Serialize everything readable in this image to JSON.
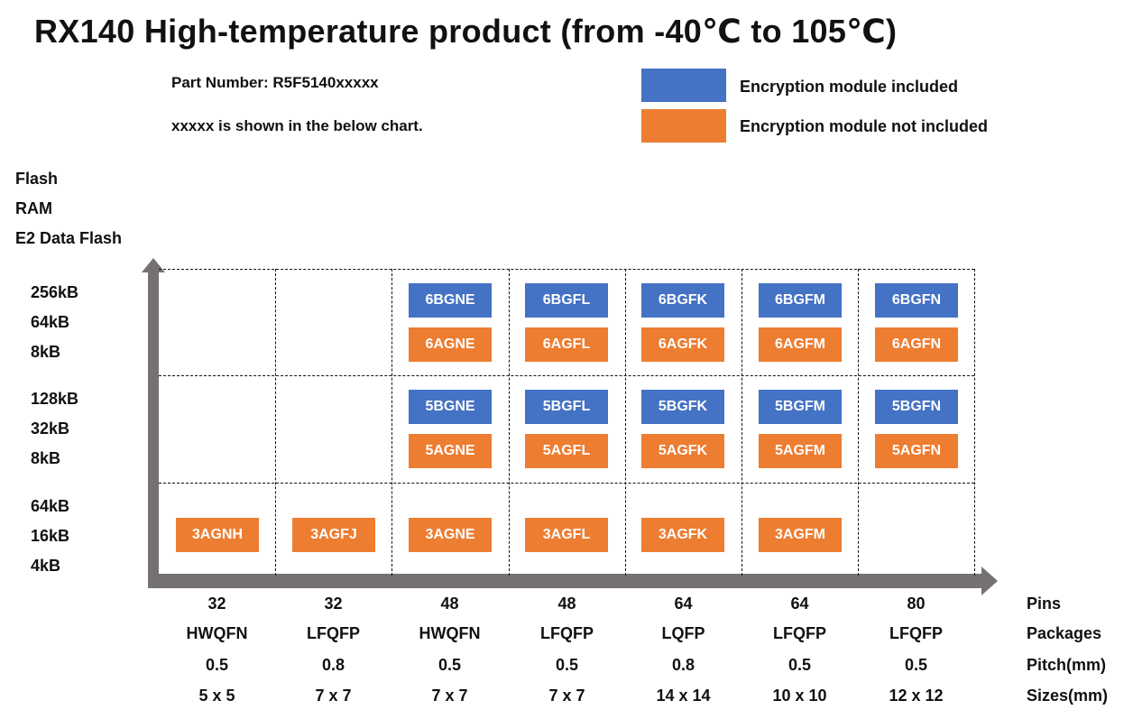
{
  "title": "RX140  High-temperature product (from -40℃ to 105℃)",
  "part_number": "Part Number: R5F5140xxxxx",
  "note": "xxxxx is shown in the below chart.",
  "colors": {
    "encrypted": "#4472C4",
    "not_encrypted": "#ED7D31",
    "axis": "#767171"
  },
  "legend": [
    {
      "label": "Encryption module included",
      "color": "#4472C4"
    },
    {
      "label": "Encryption module not included",
      "color": "#ED7D31"
    }
  ],
  "y_axis_header": [
    "Flash",
    "RAM",
    "E2 Data Flash"
  ],
  "rows": [
    {
      "memory": [
        "256kB",
        "64kB",
        "8kB"
      ],
      "cells": [
        [],
        [],
        [
          "6BGNE",
          "6AGNE"
        ],
        [
          "6BGFL",
          "6AGFL"
        ],
        [
          "6BGFK",
          "6AGFK"
        ],
        [
          "6BGFM",
          "6AGFM"
        ],
        [
          "6BGFN",
          "6AGFN"
        ]
      ]
    },
    {
      "memory": [
        "128kB",
        "32kB",
        "8kB"
      ],
      "cells": [
        [],
        [],
        [
          "5BGNE",
          "5AGNE"
        ],
        [
          "5BGFL",
          "5AGFL"
        ],
        [
          "5BGFK",
          "5AGFK"
        ],
        [
          "5BGFM",
          "5AGFM"
        ],
        [
          "5BGFN",
          "5AGFN"
        ]
      ]
    },
    {
      "memory": [
        "64kB",
        "16kB",
        "4kB"
      ],
      "cells": [
        [
          "3AGNH"
        ],
        [
          "3AGFJ"
        ],
        [
          "3AGNE"
        ],
        [
          "3AGFL"
        ],
        [
          "3AGFK"
        ],
        [
          "3AGFM"
        ],
        []
      ]
    }
  ],
  "x_axis_row_labels": [
    "Pins",
    "Packages",
    "Pitch(mm)",
    "Sizes(mm)"
  ],
  "columns": [
    {
      "pins": "32",
      "package": "HWQFN",
      "pitch": "0.5",
      "size": "5 x 5"
    },
    {
      "pins": "32",
      "package": "LFQFP",
      "pitch": "0.8",
      "size": "7 x 7"
    },
    {
      "pins": "48",
      "package": "HWQFN",
      "pitch": "0.5",
      "size": "7 x 7"
    },
    {
      "pins": "48",
      "package": "LFQFP",
      "pitch": "0.5",
      "size": "7 x 7"
    },
    {
      "pins": "64",
      "package": "LQFP",
      "pitch": "0.8",
      "size": "14 x 14"
    },
    {
      "pins": "64",
      "package": "LFQFP",
      "pitch": "0.5",
      "size": "10 x 10"
    },
    {
      "pins": "80",
      "package": "LFQFP",
      "pitch": "0.5",
      "size": "12 x 12"
    }
  ]
}
